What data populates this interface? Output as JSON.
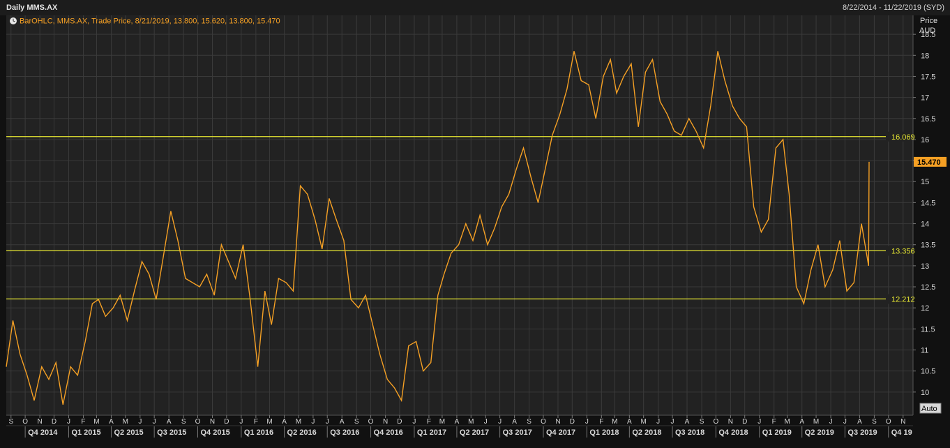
{
  "header": {
    "title": "Daily MMS.AX",
    "date_range": "8/22/2014 - 11/22/2019 (SYD)",
    "legend": "BarOHLC, MMS.AX, Trade Price, 8/21/2019, 13.800, 15.620, 13.800, 15.470"
  },
  "colors": {
    "background": "#222222",
    "grid": "#3a3a3a",
    "series": "#f5a024",
    "levels": "#e8e832",
    "axis_text": "#d8d8d8",
    "last_price_bg": "#f5a024"
  },
  "chart_data": {
    "type": "line",
    "series": [
      {
        "name": "MMS.AX",
        "x": [
          "2014-08-22",
          "2014-09-05",
          "2014-09-20",
          "2014-10-05",
          "2014-10-20",
          "2014-11-05",
          "2014-11-20",
          "2014-12-05",
          "2014-12-20",
          "2015-01-05",
          "2015-01-20",
          "2015-02-05",
          "2015-02-20",
          "2015-03-05",
          "2015-03-20",
          "2015-04-05",
          "2015-04-20",
          "2015-05-05",
          "2015-05-20",
          "2015-06-05",
          "2015-06-20",
          "2015-07-05",
          "2015-07-20",
          "2015-08-05",
          "2015-08-20",
          "2015-09-05",
          "2015-09-20",
          "2015-10-05",
          "2015-10-20",
          "2015-11-05",
          "2015-11-20",
          "2015-12-05",
          "2015-12-20",
          "2016-01-05",
          "2016-01-20",
          "2016-02-05",
          "2016-02-20",
          "2016-03-05",
          "2016-03-20",
          "2016-04-05",
          "2016-04-20",
          "2016-05-05",
          "2016-05-20",
          "2016-06-05",
          "2016-06-20",
          "2016-07-05",
          "2016-07-20",
          "2016-08-05",
          "2016-08-20",
          "2016-09-05",
          "2016-09-20",
          "2016-10-05",
          "2016-10-20",
          "2016-11-05",
          "2016-11-20",
          "2016-12-05",
          "2016-12-20",
          "2017-01-05",
          "2017-01-20",
          "2017-02-05",
          "2017-02-20",
          "2017-03-05",
          "2017-03-20",
          "2017-04-05",
          "2017-04-20",
          "2017-05-05",
          "2017-05-20",
          "2017-06-05",
          "2017-06-20",
          "2017-07-05",
          "2017-07-20",
          "2017-08-05",
          "2017-08-20",
          "2017-09-05",
          "2017-09-20",
          "2017-10-05",
          "2017-10-20",
          "2017-11-05",
          "2017-11-20",
          "2017-12-05",
          "2017-12-20",
          "2018-01-05",
          "2018-01-20",
          "2018-02-05",
          "2018-02-20",
          "2018-03-05",
          "2018-03-20",
          "2018-04-05",
          "2018-04-20",
          "2018-05-05",
          "2018-05-20",
          "2018-06-05",
          "2018-06-20",
          "2018-07-05",
          "2018-07-20",
          "2018-08-05",
          "2018-08-20",
          "2018-09-05",
          "2018-09-20",
          "2018-10-05",
          "2018-10-20",
          "2018-11-05",
          "2018-11-20",
          "2018-12-05",
          "2018-12-20",
          "2019-01-05",
          "2019-01-20",
          "2019-02-05",
          "2019-02-20",
          "2019-03-05",
          "2019-03-20",
          "2019-04-05",
          "2019-04-20",
          "2019-05-05",
          "2019-05-20",
          "2019-06-05",
          "2019-06-20",
          "2019-07-05",
          "2019-07-20",
          "2019-08-05",
          "2019-08-20",
          "2019-08-21"
        ],
        "values": [
          10.6,
          11.7,
          10.9,
          10.4,
          9.8,
          10.6,
          10.3,
          10.7,
          9.7,
          10.6,
          10.4,
          11.2,
          12.1,
          12.2,
          11.8,
          12.0,
          12.3,
          11.7,
          12.4,
          13.1,
          12.8,
          12.2,
          13.2,
          14.3,
          13.6,
          12.7,
          12.6,
          12.5,
          12.8,
          12.3,
          13.5,
          13.1,
          12.7,
          13.5,
          12.2,
          10.6,
          12.4,
          11.6,
          12.7,
          12.6,
          12.4,
          14.9,
          14.7,
          14.1,
          13.4,
          14.6,
          14.1,
          13.6,
          12.2,
          12.0,
          12.3,
          11.6,
          10.9,
          10.3,
          10.1,
          9.8,
          11.1,
          11.2,
          10.5,
          10.7,
          12.3,
          12.8,
          13.3,
          13.5,
          14.0,
          13.6,
          14.2,
          13.5,
          13.9,
          14.4,
          14.7,
          15.3,
          15.8,
          15.1,
          14.5,
          15.3,
          16.1,
          16.6,
          17.2,
          18.1,
          17.4,
          17.3,
          16.5,
          17.5,
          17.9,
          17.1,
          17.5,
          17.8,
          16.3,
          17.6,
          17.9,
          16.9,
          16.6,
          16.2,
          16.1,
          16.5,
          16.2,
          15.8,
          16.8,
          18.1,
          17.4,
          16.8,
          16.5,
          16.3,
          14.4,
          13.8,
          14.1,
          15.8,
          16.0,
          14.7,
          12.5,
          12.1,
          12.9,
          13.5,
          12.5,
          12.9,
          13.6,
          12.4,
          12.6,
          14.0,
          13.0,
          15.47
        ]
      }
    ],
    "y_ticks": [
      10,
      10.5,
      11,
      11.5,
      12,
      12.5,
      13,
      13.5,
      14,
      14.5,
      15,
      15.5,
      16,
      16.5,
      17,
      17.5,
      18,
      18.5
    ],
    "y_tick_labels": [
      "10",
      "10.5",
      "11",
      "11.5",
      "12",
      "12.5",
      "13",
      "13.5",
      "14",
      "14.5",
      "15",
      "",
      "16",
      "16.5",
      "17",
      "17.5",
      "18",
      "18.5"
    ],
    "ylim": [
      9.45,
      18.95
    ],
    "xlim": [
      "2014-08-22",
      "2019-11-22"
    ],
    "ylabel": "Price",
    "yunit": "AUD",
    "grid": true,
    "last_price": 15.47,
    "last_price_label": "15.470",
    "levels": [
      {
        "value": 16.069,
        "label": "16.069"
      },
      {
        "value": 13.356,
        "label": "13.356"
      },
      {
        "value": 12.212,
        "label": "12.212"
      }
    ],
    "month_ticks": [
      "2014-09-01",
      "2014-10-01",
      "2014-11-01",
      "2014-12-01",
      "2015-01-01",
      "2015-02-01",
      "2015-03-01",
      "2015-04-01",
      "2015-05-01",
      "2015-06-01",
      "2015-07-01",
      "2015-08-01",
      "2015-09-01",
      "2015-10-01",
      "2015-11-01",
      "2015-12-01",
      "2016-01-01",
      "2016-02-01",
      "2016-03-01",
      "2016-04-01",
      "2016-05-01",
      "2016-06-01",
      "2016-07-01",
      "2016-08-01",
      "2016-09-01",
      "2016-10-01",
      "2016-11-01",
      "2016-12-01",
      "2017-01-01",
      "2017-02-01",
      "2017-03-01",
      "2017-04-01",
      "2017-05-01",
      "2017-06-01",
      "2017-07-01",
      "2017-08-01",
      "2017-09-01",
      "2017-10-01",
      "2017-11-01",
      "2017-12-01",
      "2018-01-01",
      "2018-02-01",
      "2018-03-01",
      "2018-04-01",
      "2018-05-01",
      "2018-06-01",
      "2018-07-01",
      "2018-08-01",
      "2018-09-01",
      "2018-10-01",
      "2018-11-01",
      "2018-12-01",
      "2019-01-01",
      "2019-02-01",
      "2019-03-01",
      "2019-04-01",
      "2019-05-01",
      "2019-06-01",
      "2019-07-01",
      "2019-08-01",
      "2019-09-01",
      "2019-10-01",
      "2019-11-01"
    ],
    "month_labels": [
      "S",
      "O",
      "N",
      "D",
      "J",
      "F",
      "M",
      "A",
      "M",
      "J",
      "J",
      "A",
      "S",
      "O",
      "N",
      "D",
      "J",
      "F",
      "M",
      "A",
      "M",
      "J",
      "J",
      "A",
      "S",
      "O",
      "N",
      "D",
      "J",
      "F",
      "M",
      "A",
      "M",
      "J",
      "J",
      "A",
      "S",
      "O",
      "N",
      "D",
      "J",
      "F",
      "M",
      "A",
      "M",
      "J",
      "J",
      "A",
      "S",
      "O",
      "N",
      "D",
      "J",
      "F",
      "M",
      "A",
      "M",
      "J",
      "J",
      "A",
      "S",
      "O",
      "N"
    ],
    "quarter_ticks": [
      "2014-10-01",
      "2015-01-01",
      "2015-04-01",
      "2015-07-01",
      "2015-10-01",
      "2016-01-01",
      "2016-04-01",
      "2016-07-01",
      "2016-10-01",
      "2017-01-01",
      "2017-04-01",
      "2017-07-01",
      "2017-10-01",
      "2018-01-01",
      "2018-04-01",
      "2018-07-01",
      "2018-10-01",
      "2019-01-01",
      "2019-04-01",
      "2019-07-01",
      "2019-10-01"
    ],
    "quarter_labels": [
      "Q4 2014",
      "Q1 2015",
      "Q2 2015",
      "Q3 2015",
      "Q4 2015",
      "Q1 2016",
      "Q2 2016",
      "Q3 2016",
      "Q4 2016",
      "Q1 2017",
      "Q2 2017",
      "Q3 2017",
      "Q4 2017",
      "Q1 2018",
      "Q2 2018",
      "Q3 2018",
      "Q4 2018",
      "Q1 2019",
      "Q2 2019",
      "Q3 2019",
      "Q4 19"
    ]
  },
  "controls": {
    "auto_label": "Auto"
  }
}
